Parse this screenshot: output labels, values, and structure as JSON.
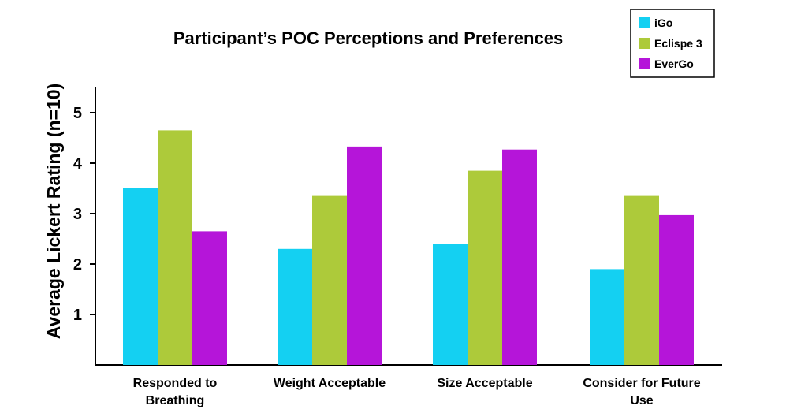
{
  "chart_data": {
    "type": "bar",
    "title": "Participant’s POC Perceptions and Preferences",
    "ylabel": "Average Lickert Rating (n=10)",
    "xlabel": "",
    "ylim": [
      0,
      5.5
    ],
    "yticks": [
      1,
      2,
      3,
      4,
      5
    ],
    "grid": false,
    "legend_position": "top-right",
    "categories": [
      [
        "Responded to",
        "Breathing"
      ],
      [
        "Weight Acceptable"
      ],
      [
        "Size Acceptable"
      ],
      [
        "Consider for Future",
        "Use"
      ]
    ],
    "series": [
      {
        "name": "iGo",
        "color": "#14d0f2",
        "values": [
          3.5,
          2.3,
          2.4,
          1.9
        ]
      },
      {
        "name": "Eclispe 3",
        "color": "#adca3a",
        "values": [
          4.65,
          3.35,
          3.85,
          3.35
        ]
      },
      {
        "name": "EverGo",
        "color": "#b515d9",
        "values": [
          2.65,
          4.33,
          4.27,
          2.97
        ]
      }
    ]
  }
}
